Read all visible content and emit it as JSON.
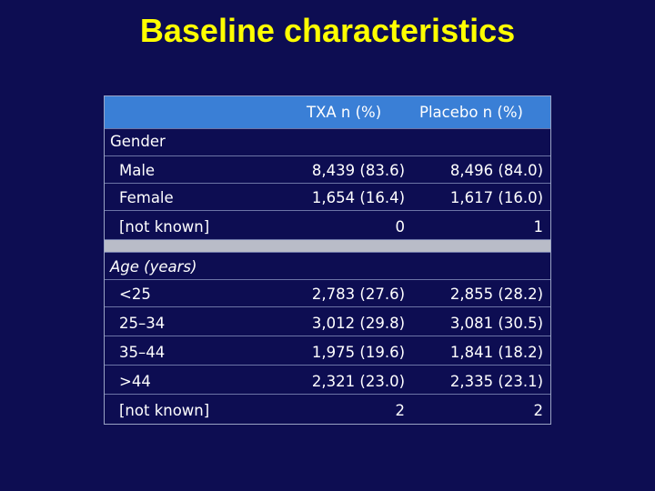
{
  "title": "Baseline characteristics",
  "columns": [
    "TXA n (%)",
    "Placebo n (%)"
  ],
  "sections": [
    {
      "heading": "Gender",
      "rows": [
        {
          "label": "Male",
          "txa": "8,439 (83.6)",
          "placebo": "8,496 (84.0)"
        },
        {
          "label": "Female",
          "txa": "1,654 (16.4)",
          "placebo": "1,617 (16.0)"
        },
        {
          "label": "[not known]",
          "txa": "0",
          "placebo": "1"
        }
      ]
    },
    {
      "heading": "Age (years)",
      "rows": [
        {
          "label": "<25",
          "txa": "2,783 (27.6)",
          "placebo": "2,855 (28.2)"
        },
        {
          "label": "25–34",
          "txa": "3,012 (29.8)",
          "placebo": "3,081 (30.5)"
        },
        {
          "label": "35–44",
          "txa": "1,975 (19.6)",
          "placebo": "1,841 (18.2)"
        },
        {
          "label": ">44",
          "txa": "2,321 (23.0)",
          "placebo": "2,335 (23.1)"
        },
        {
          "label": "[not known]",
          "txa": "2",
          "placebo": "2"
        }
      ]
    }
  ]
}
